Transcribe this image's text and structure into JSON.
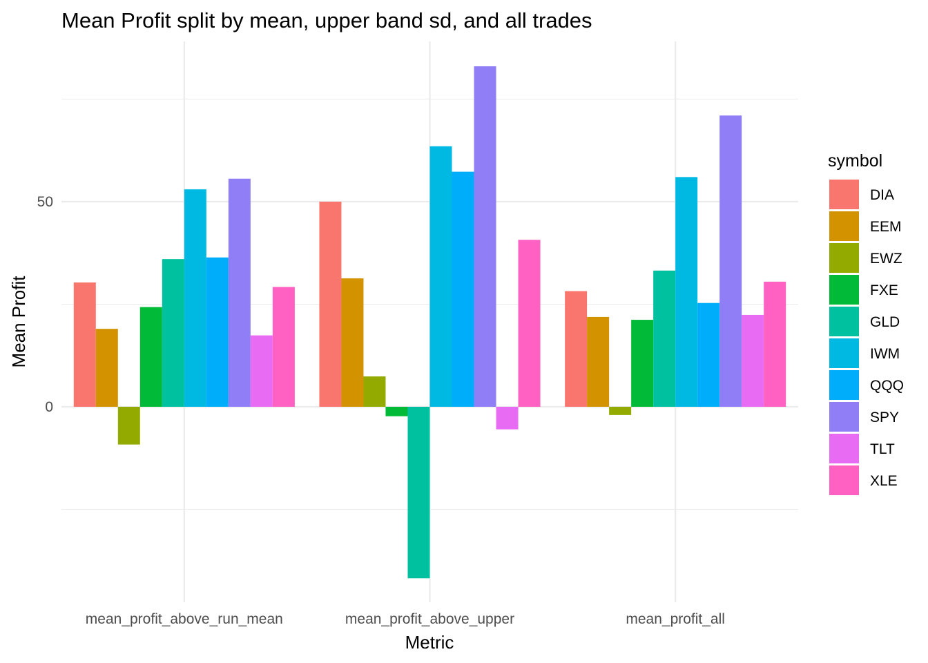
{
  "chart_data": {
    "type": "bar",
    "title": "Mean Profit split by mean, upper band sd, and all trades",
    "xlabel": "Metric",
    "ylabel": "Mean Profit",
    "ylim": [
      -48,
      83
    ],
    "yticks": [
      0,
      50
    ],
    "grid": true,
    "legend": {
      "title": "symbol",
      "position": "right"
    },
    "categories": [
      "mean_profit_above_run_mean",
      "mean_profit_above_upper",
      "mean_profit_all"
    ],
    "series": [
      {
        "name": "DIA",
        "color": "#F8766D",
        "values": [
          30.3,
          50.0,
          28.2
        ]
      },
      {
        "name": "EEM",
        "color": "#D39200",
        "values": [
          19.0,
          31.3,
          21.9
        ]
      },
      {
        "name": "EWZ",
        "color": "#93AA00",
        "values": [
          -9.2,
          7.4,
          -2.0
        ]
      },
      {
        "name": "FXE",
        "color": "#00BA38",
        "values": [
          24.3,
          -2.3,
          21.2
        ]
      },
      {
        "name": "GLD",
        "color": "#00C19F",
        "values": [
          36.0,
          -41.8,
          33.2
        ]
      },
      {
        "name": "IWM",
        "color": "#00B9E3",
        "values": [
          53.0,
          63.5,
          56.0
        ]
      },
      {
        "name": "QQQ",
        "color": "#00ADFA",
        "values": [
          36.4,
          57.3,
          25.3
        ]
      },
      {
        "name": "SPY",
        "color": "#8F7EF5",
        "values": [
          55.6,
          83.0,
          71.0
        ]
      },
      {
        "name": "TLT",
        "color": "#E76BF3",
        "values": [
          17.4,
          -5.5,
          22.4
        ]
      },
      {
        "name": "XLE",
        "color": "#FF61C3",
        "values": [
          29.2,
          40.7,
          30.5
        ]
      }
    ]
  }
}
